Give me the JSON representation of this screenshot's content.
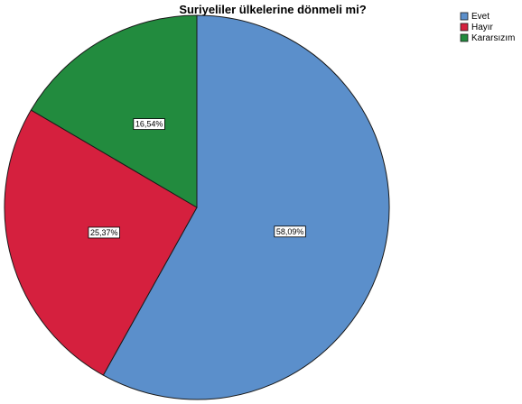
{
  "chart_data": {
    "type": "pie",
    "title": "Suriyeliler ülkelerine dönmeli mi?",
    "categories": [
      "Evet",
      "Hayır",
      "Kararsızım"
    ],
    "values": [
      58.09,
      25.37,
      16.54
    ],
    "labels": [
      "58,09%",
      "25,37%",
      "16,54%"
    ],
    "colors": [
      "#5b8fcb",
      "#d5203e",
      "#228b3e"
    ],
    "legend_position": "top-right",
    "start_angle_deg": 0,
    "direction": "clockwise"
  }
}
